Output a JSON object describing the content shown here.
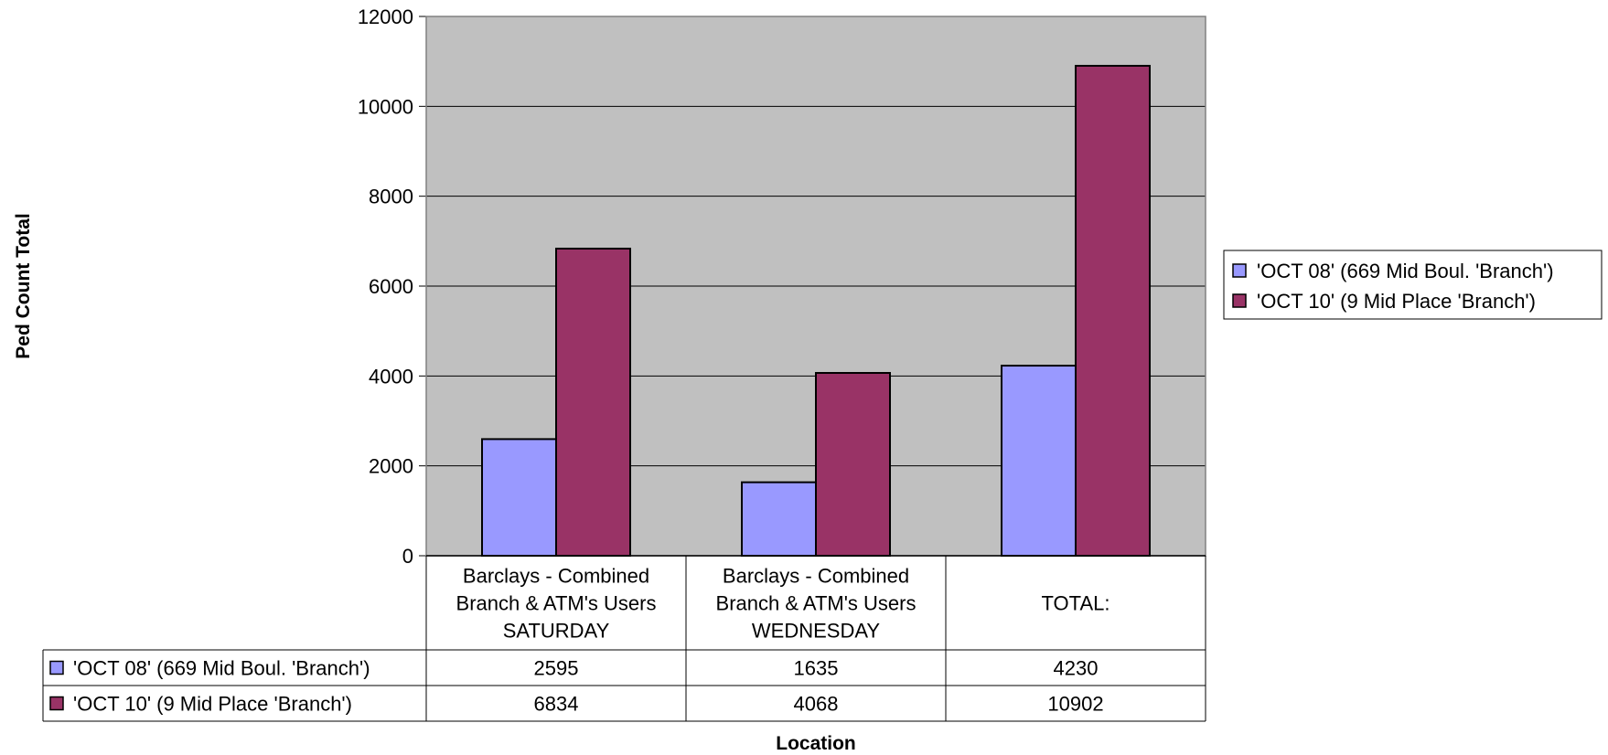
{
  "chart_data": {
    "type": "bar",
    "title": "",
    "xlabel": "Location",
    "ylabel": "Ped Count Total",
    "ylim": [
      0,
      12000
    ],
    "yticks": [
      0,
      2000,
      4000,
      6000,
      8000,
      10000,
      12000
    ],
    "grid": true,
    "legend_position": "right",
    "categories": [
      [
        "Barclays - Combined",
        "Branch & ATM's Users",
        "SATURDAY"
      ],
      [
        "Barclays - Combined",
        "Branch & ATM's Users",
        "WEDNESDAY"
      ],
      [
        "TOTAL:"
      ]
    ],
    "series": [
      {
        "name": "'OCT 08'  (669 Mid Boul. 'Branch')",
        "color": "#9999ff",
        "values": [
          2595,
          1635,
          4230
        ]
      },
      {
        "name": "'OCT 10'  (9 Mid Place 'Branch')",
        "color": "#993366",
        "values": [
          6834,
          4068,
          10902
        ]
      }
    ],
    "data_table": true,
    "plot_background": "#c0c0c0"
  }
}
